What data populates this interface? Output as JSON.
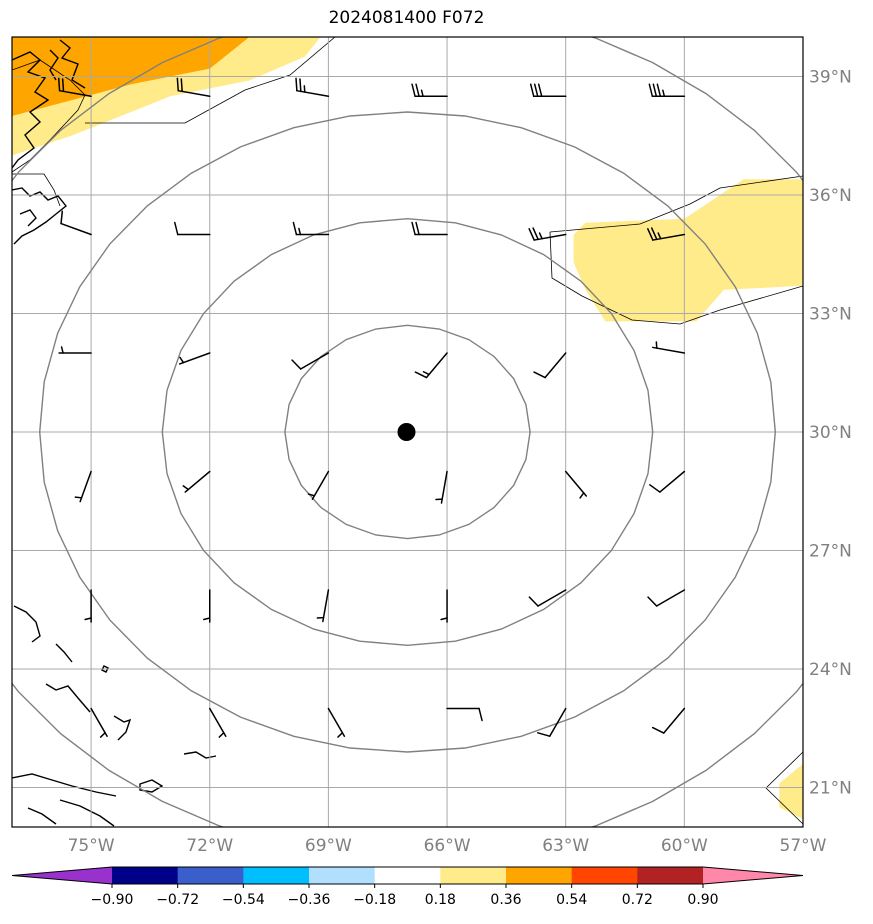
{
  "title": "2024081400 F072",
  "map": {
    "lon_range": [
      -77,
      -57
    ],
    "lat_range": [
      20,
      40
    ],
    "lon_ticks": [
      {
        "value": -75,
        "label": "75°W"
      },
      {
        "value": -72,
        "label": "72°W"
      },
      {
        "value": -69,
        "label": "69°W"
      },
      {
        "value": -66,
        "label": "66°W"
      },
      {
        "value": -63,
        "label": "63°W"
      },
      {
        "value": -60,
        "label": "60°W"
      },
      {
        "value": -57,
        "label": "57°W"
      }
    ],
    "lat_ticks": [
      {
        "value": 39,
        "label": "39°N"
      },
      {
        "value": 36,
        "label": "36°N"
      },
      {
        "value": 33,
        "label": "33°N"
      },
      {
        "value": 30,
        "label": "30°N"
      },
      {
        "value": 27,
        "label": "27°N"
      },
      {
        "value": 24,
        "label": "24°N"
      },
      {
        "value": 21,
        "label": "21°N"
      }
    ],
    "grid": true,
    "center": {
      "lon": -67,
      "lat": 30
    },
    "range_rings": [
      {
        "lon_radius": 3.1,
        "lat_radius": 2.7
      },
      {
        "lon_radius": 6.2,
        "lat_radius": 5.4
      },
      {
        "lon_radius": 9.3,
        "lat_radius": 8.1
      },
      {
        "lon_radius": 12.4,
        "lat_radius": 10.8
      }
    ],
    "shaded_regions": [
      {
        "level": "0.18-0.36",
        "color": "#ffeb8a",
        "points": [
          [
            -77,
            40
          ],
          [
            -69.2,
            40
          ],
          [
            -69.6,
            39.5
          ],
          [
            -71,
            38.9
          ],
          [
            -73,
            38.5
          ],
          [
            -74.5,
            37.9
          ],
          [
            -75.5,
            37.5
          ],
          [
            -77,
            37
          ]
        ]
      },
      {
        "level": "0.36-0.54",
        "color": "#ffa500",
        "points": [
          [
            -77,
            40
          ],
          [
            -71,
            40
          ],
          [
            -72,
            39.2
          ],
          [
            -74,
            38.8
          ],
          [
            -75.5,
            38.4
          ],
          [
            -77,
            38
          ]
        ]
      },
      {
        "level": "0.18-0.36",
        "color": "#ffeb8a",
        "points": [
          [
            -62.5,
            35.3
          ],
          [
            -60,
            35.4
          ],
          [
            -58.5,
            36.4
          ],
          [
            -57,
            36.4
          ],
          [
            -57,
            33.7
          ],
          [
            -59,
            33.6
          ],
          [
            -59.7,
            32.8
          ],
          [
            -62,
            32.8
          ],
          [
            -62.5,
            33.6
          ],
          [
            -62.8,
            34.3
          ],
          [
            -62.8,
            35
          ]
        ]
      },
      {
        "level": "0.18-0.36",
        "color": "#ffeb8a",
        "points": [
          [
            -57,
            21.6
          ],
          [
            -57.6,
            21.1
          ],
          [
            -57.6,
            20.5
          ],
          [
            -57,
            20.2
          ]
        ]
      }
    ],
    "wind_barbs": [
      {
        "lon": -75,
        "lat": 38.5,
        "dir": 280,
        "speed": 20
      },
      {
        "lon": -72,
        "lat": 38.5,
        "dir": 280,
        "speed": 20
      },
      {
        "lon": -69,
        "lat": 38.5,
        "dir": 280,
        "speed": 25
      },
      {
        "lon": -66,
        "lat": 38.5,
        "dir": 270,
        "speed": 25
      },
      {
        "lon": -63,
        "lat": 38.5,
        "dir": 270,
        "speed": 30
      },
      {
        "lon": -60,
        "lat": 38.5,
        "dir": 270,
        "speed": 35
      },
      {
        "lon": -75,
        "lat": 35,
        "dir": 290,
        "speed": 10
      },
      {
        "lon": -72,
        "lat": 35,
        "dir": 270,
        "speed": 10
      },
      {
        "lon": -69,
        "lat": 35,
        "dir": 270,
        "speed": 15
      },
      {
        "lon": -66,
        "lat": 35,
        "dir": 270,
        "speed": 20
      },
      {
        "lon": -63,
        "lat": 35,
        "dir": 260,
        "speed": 25
      },
      {
        "lon": -60,
        "lat": 35,
        "dir": 260,
        "speed": 25
      },
      {
        "lon": -75,
        "lat": 32,
        "dir": 270,
        "speed": 5
      },
      {
        "lon": -72,
        "lat": 32,
        "dir": 250,
        "speed": 5
      },
      {
        "lon": -69,
        "lat": 32,
        "dir": 240,
        "speed": 10
      },
      {
        "lon": -66,
        "lat": 32,
        "dir": 220,
        "speed": 15
      },
      {
        "lon": -63,
        "lat": 32,
        "dir": 220,
        "speed": 10
      },
      {
        "lon": -60,
        "lat": 32,
        "dir": 280,
        "speed": 5
      },
      {
        "lon": -75,
        "lat": 29,
        "dir": 200,
        "speed": 5
      },
      {
        "lon": -72,
        "lat": 29,
        "dir": 230,
        "speed": 5
      },
      {
        "lon": -69,
        "lat": 29,
        "dir": 210,
        "speed": 5
      },
      {
        "lon": -66,
        "lat": 29,
        "dir": 190,
        "speed": 5
      },
      {
        "lon": -63,
        "lat": 29,
        "dir": 140,
        "speed": 5
      },
      {
        "lon": -60,
        "lat": 29,
        "dir": 230,
        "speed": 10
      },
      {
        "lon": -75,
        "lat": 26,
        "dir": 180,
        "speed": 5
      },
      {
        "lon": -72,
        "lat": 26,
        "dir": 180,
        "speed": 5
      },
      {
        "lon": -69,
        "lat": 26,
        "dir": 190,
        "speed": 5
      },
      {
        "lon": -66,
        "lat": 26,
        "dir": 180,
        "speed": 5
      },
      {
        "lon": -63,
        "lat": 26,
        "dir": 240,
        "speed": 10
      },
      {
        "lon": -60,
        "lat": 26,
        "dir": 240,
        "speed": 10
      },
      {
        "lon": -75,
        "lat": 23,
        "dir": 150,
        "speed": 5
      },
      {
        "lon": -72,
        "lat": 23,
        "dir": 150,
        "speed": 5
      },
      {
        "lon": -69,
        "lat": 23,
        "dir": 150,
        "speed": 5
      },
      {
        "lon": -66,
        "lat": 23,
        "dir": 90,
        "speed": 10
      },
      {
        "lon": -63,
        "lat": 23,
        "dir": 210,
        "speed": 10
      },
      {
        "lon": -60,
        "lat": 23,
        "dir": 220,
        "speed": 10
      }
    ]
  },
  "colorbar": {
    "colors": [
      "#9932cc",
      "#000088",
      "#3a5fcd",
      "#00bfff",
      "#b0e0fe",
      "#ffffff",
      "#ffeb8a",
      "#ffa500",
      "#ff4500",
      "#b22222",
      "#ff88aa"
    ],
    "labels": [
      "−0.90",
      "−0.72",
      "−0.54",
      "−0.36",
      "−0.18",
      "0.18",
      "0.36",
      "0.54",
      "0.72",
      "0.90"
    ]
  }
}
